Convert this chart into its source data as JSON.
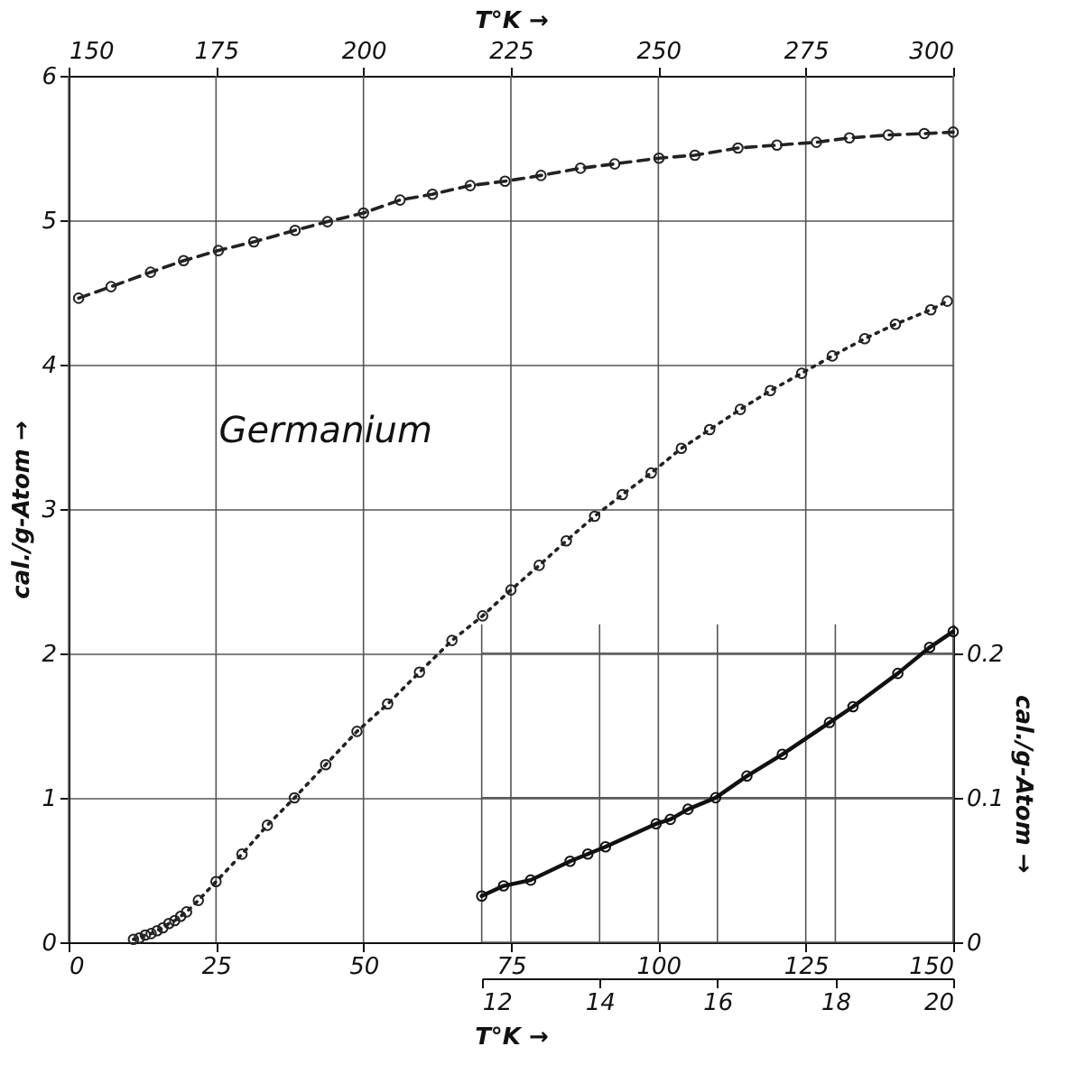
{
  "chart_data": [
    {
      "type": "line",
      "xlabel": "T°K →",
      "ylabel": "cal./g-Atom →",
      "x2label": "T°K →",
      "annotations": [
        "Germanium"
      ],
      "xlim": [
        0,
        150
      ],
      "xticks": [
        0,
        25,
        50,
        75,
        100,
        125,
        150
      ],
      "ylim": [
        0,
        6
      ],
      "yticks": [
        0,
        1,
        2,
        3,
        4,
        5,
        6
      ],
      "x2lim": [
        150,
        300
      ],
      "x2ticks": [
        150,
        175,
        200,
        225,
        250,
        275,
        300
      ],
      "grid": true,
      "marker": "circle",
      "line_style": "dotted",
      "series": [
        {
          "color": "#222222",
          "x": [
            11,
            12,
            13,
            14,
            15,
            16,
            17,
            18,
            19,
            20,
            22,
            25,
            29.4,
            33.7,
            38.3,
            43.6,
            48.9,
            54.1,
            59.5,
            65,
            70.2,
            75,
            79.8,
            84.4,
            89.2,
            93.9,
            98.8,
            103.9,
            108.7,
            113.9,
            119,
            124.3,
            129.5,
            135,
            140.2,
            146.2,
            149
          ],
          "values": [
            0.02,
            0.03,
            0.05,
            0.06,
            0.08,
            0.1,
            0.13,
            0.15,
            0.18,
            0.21,
            0.29,
            0.42,
            0.61,
            0.81,
            1.0,
            1.23,
            1.46,
            1.65,
            1.87,
            2.09,
            2.26,
            2.44,
            2.61,
            2.78,
            2.95,
            3.1,
            3.25,
            3.42,
            3.55,
            3.69,
            3.82,
            3.94,
            4.06,
            4.18,
            4.28,
            4.38,
            4.44
          ]
        },
        {
          "color": "#222222",
          "axis": "x2",
          "line_style": "dashed",
          "x": [
            151.7,
            157.2,
            163.9,
            169.5,
            175.4,
            181.4,
            188.4,
            193.9,
            200,
            206.2,
            211.7,
            218.1,
            224,
            230.1,
            236.8,
            242.6,
            250.1,
            256.2,
            263.5,
            270.1,
            276.8,
            282.4,
            289,
            295.1,
            300
          ],
          "values": [
            4.46,
            4.54,
            4.64,
            4.72,
            4.79,
            4.85,
            4.93,
            4.99,
            5.05,
            5.14,
            5.18,
            5.24,
            5.27,
            5.31,
            5.36,
            5.39,
            5.43,
            5.45,
            5.5,
            5.52,
            5.54,
            5.57,
            5.59,
            5.6,
            5.61
          ]
        }
      ]
    },
    {
      "type": "line",
      "ylabel": "cal./g-Atom →",
      "xlim": [
        12,
        20
      ],
      "xticks": [
        12,
        14,
        16,
        18,
        20
      ],
      "ylim": [
        0,
        0.22
      ],
      "yticks": [
        0,
        0.1,
        0.2
      ],
      "grid": true,
      "marker": "circle",
      "line_style": "solid",
      "series": [
        {
          "color": "#111111",
          "x": [
            12,
            12.37,
            12.83,
            13.5,
            13.8,
            14.1,
            14.96,
            15.2,
            15.5,
            15.97,
            16.5,
            17.1,
            17.9,
            18.3,
            19.06,
            19.6,
            20
          ],
          "values": [
            0.032,
            0.039,
            0.043,
            0.056,
            0.061,
            0.066,
            0.082,
            0.085,
            0.092,
            0.1,
            0.115,
            0.13,
            0.152,
            0.163,
            0.186,
            0.204,
            0.215
          ]
        }
      ]
    }
  ]
}
